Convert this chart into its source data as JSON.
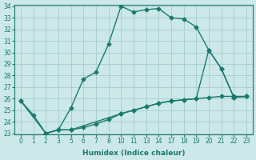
{
  "xlabel": "Humidex (Indice chaleur)",
  "background_color": "#cce8e8",
  "grid_color": "#aad0d0",
  "line_color": "#1a7a6e",
  "xtick_labels": [
    "0",
    "1",
    "2",
    "3",
    "5",
    "6",
    "7",
    "8",
    "10",
    "11",
    "13",
    "14",
    "17",
    "18",
    "19",
    "20",
    "21",
    "22",
    "23"
  ],
  "ytick_labels": [
    "23",
    "24",
    "25",
    "26",
    "27",
    "28",
    "29",
    "30",
    "31",
    "32",
    "33",
    "34"
  ],
  "ylim": [
    23,
    34
  ],
  "lines": [
    {
      "xi": [
        0,
        1,
        2,
        3,
        4,
        5,
        6,
        7,
        8,
        9,
        10,
        11,
        12,
        13,
        14,
        15,
        16,
        17,
        18
      ],
      "y": [
        25.8,
        24.6,
        23.0,
        23.3,
        25.2,
        27.7,
        28.3,
        30.7,
        34.0,
        33.5,
        33.7,
        33.8,
        33.0,
        32.9,
        32.2,
        30.2,
        28.6,
        26.1,
        26.2
      ]
    },
    {
      "xi": [
        0,
        2,
        3,
        4,
        5,
        6,
        7,
        8,
        9,
        10,
        11,
        12,
        13,
        14,
        15,
        16,
        17,
        18
      ],
      "y": [
        25.8,
        23.0,
        23.3,
        23.3,
        23.5,
        23.8,
        24.2,
        24.7,
        25.0,
        25.3,
        25.6,
        25.8,
        25.9,
        26.0,
        26.1,
        26.2,
        26.2,
        26.2
      ]
    },
    {
      "xi": [
        2,
        3,
        4,
        8,
        9,
        10,
        11,
        12,
        13,
        14,
        15,
        16,
        17,
        18
      ],
      "y": [
        23.0,
        23.3,
        23.3,
        24.7,
        25.0,
        25.3,
        25.6,
        25.8,
        25.9,
        26.0,
        30.2,
        28.6,
        26.1,
        26.2
      ]
    }
  ],
  "marker": "D",
  "marker_size": 2.5,
  "linewidth": 1.0,
  "fontsize_ticks": 5.5,
  "fontsize_label": 6.5
}
